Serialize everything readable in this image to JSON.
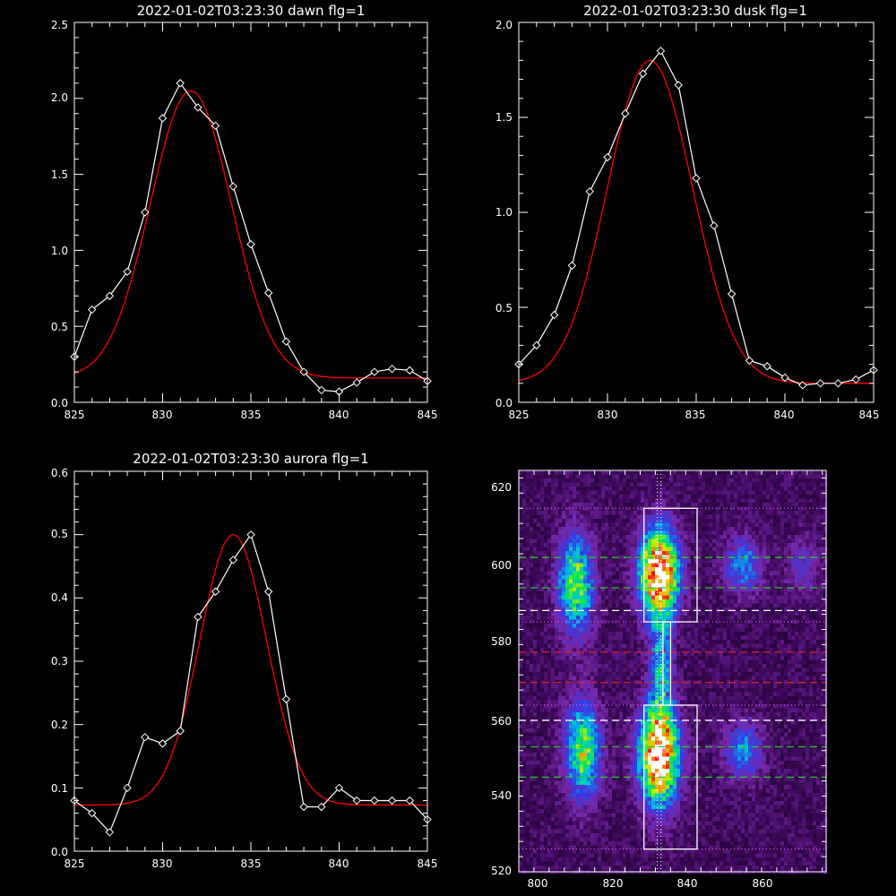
{
  "colors": {
    "background": "#000000",
    "axes": "#ffffff",
    "data_line": "#ffffff",
    "fit_line": "#ff0000",
    "green_dash": "#22cc22",
    "red_dash": "#dd2222",
    "white_dash": "#ffffff",
    "dotted": "#ff66ff"
  },
  "chart_data": [
    {
      "type": "line",
      "title": "2022-01-02T03:23:30 dawn flg=1",
      "xlim": [
        825,
        845
      ],
      "ylim": [
        0,
        2.5
      ],
      "xticks": [
        825,
        830,
        835,
        840,
        845
      ],
      "xtick_labels": [
        "825",
        "830",
        "835",
        "840",
        "845"
      ],
      "yticks": [
        0,
        0.5,
        1,
        1.5,
        2,
        2.5
      ],
      "ytick_labels": [
        "0.0",
        "0.5",
        "1.0",
        "1.5",
        "2.0",
        "2.5"
      ],
      "series": [
        {
          "role": "data",
          "marker": "diamond",
          "x": [
            825,
            826,
            827,
            828,
            829,
            830,
            831,
            832,
            833,
            834,
            835,
            836,
            837,
            838,
            839,
            840,
            841,
            842,
            843,
            844,
            845
          ],
          "y": [
            0.3,
            0.61,
            0.7,
            0.86,
            1.25,
            1.87,
            2.1,
            1.94,
            1.82,
            1.42,
            1.04,
            0.72,
            0.4,
            0.2,
            0.08,
            0.07,
            0.13,
            0.2,
            0.22,
            0.21,
            0.14
          ]
        },
        {
          "role": "fit",
          "gaussian": {
            "amp": 1.89,
            "center": 831.6,
            "sigma": 2.3,
            "offset": 0.16
          }
        }
      ]
    },
    {
      "type": "line",
      "title": "2022-01-02T03:23:30 dusk flg=1",
      "xlim": [
        825,
        845
      ],
      "ylim": [
        0,
        2.0
      ],
      "xticks": [
        825,
        830,
        835,
        840,
        845
      ],
      "xtick_labels": [
        "825",
        "830",
        "835",
        "840",
        "845"
      ],
      "yticks": [
        0,
        0.5,
        1,
        1.5,
        2
      ],
      "ytick_labels": [
        "0.0",
        "0.5",
        "1.0",
        "1.5",
        "2.0"
      ],
      "series": [
        {
          "role": "data",
          "marker": "diamond",
          "x": [
            825,
            826,
            827,
            828,
            829,
            830,
            831,
            832,
            833,
            834,
            835,
            836,
            837,
            838,
            839,
            840,
            841,
            842,
            843,
            844,
            845
          ],
          "y": [
            0.2,
            0.3,
            0.46,
            0.72,
            1.11,
            1.29,
            1.52,
            1.73,
            1.85,
            1.67,
            1.18,
            0.93,
            0.57,
            0.22,
            0.19,
            0.13,
            0.09,
            0.1,
            0.1,
            0.12,
            0.17
          ]
        },
        {
          "role": "fit",
          "gaussian": {
            "amp": 1.7,
            "center": 832.4,
            "sigma": 2.4,
            "offset": 0.1
          }
        }
      ]
    },
    {
      "type": "line",
      "title": "2022-01-02T03:23:30 aurora flg=1",
      "xlim": [
        825,
        845
      ],
      "ylim": [
        0,
        0.6
      ],
      "xticks": [
        825,
        830,
        835,
        840,
        845
      ],
      "xtick_labels": [
        "825",
        "830",
        "835",
        "840",
        "845"
      ],
      "yticks": [
        0,
        0.1,
        0.2,
        0.3,
        0.4,
        0.5,
        0.6
      ],
      "ytick_labels": [
        "0.0",
        "0.1",
        "0.2",
        "0.3",
        "0.4",
        "0.5",
        "0.6"
      ],
      "series": [
        {
          "role": "data",
          "marker": "diamond",
          "x": [
            825,
            826,
            827,
            828,
            829,
            830,
            831,
            832,
            833,
            834,
            835,
            836,
            837,
            838,
            839,
            840,
            841,
            842,
            843,
            844,
            845
          ],
          "y": [
            0.08,
            0.06,
            0.03,
            0.1,
            0.18,
            0.17,
            0.19,
            0.37,
            0.41,
            0.46,
            0.5,
            0.41,
            0.24,
            0.07,
            0.07,
            0.1,
            0.08,
            0.08,
            0.08,
            0.08,
            0.05
          ]
        },
        {
          "role": "fit",
          "gaussian": {
            "amp": 0.427,
            "center": 834.0,
            "sigma": 1.9,
            "offset": 0.073
          }
        }
      ]
    },
    {
      "type": "heatmap",
      "title": "",
      "xlim": [
        795,
        876
      ],
      "ylim": [
        519,
        625
      ],
      "xticks": [
        800,
        820,
        840,
        860
      ],
      "xtick_labels": [
        "800",
        "820",
        "840",
        "860"
      ],
      "yticks": [
        520,
        540,
        560,
        580,
        600,
        620
      ],
      "ytick_labels": [
        "520",
        "540",
        "560",
        "580",
        "600",
        "620"
      ],
      "blobs": [
        {
          "x": 810,
          "y": 595,
          "sx": 3.2,
          "sy": 9,
          "amp": 0.55
        },
        {
          "x": 812,
          "y": 551,
          "sx": 3.2,
          "sy": 9,
          "amp": 0.55
        },
        {
          "x": 832,
          "y": 598,
          "sx": 3.5,
          "sy": 8,
          "amp": 1.0
        },
        {
          "x": 832,
          "y": 550,
          "sx": 3.5,
          "sy": 9,
          "amp": 1.0
        },
        {
          "x": 832.5,
          "y": 574,
          "sx": 2.0,
          "sy": 9,
          "amp": 0.35
        },
        {
          "x": 854,
          "y": 600,
          "sx": 3.5,
          "sy": 5,
          "amp": 0.33
        },
        {
          "x": 854,
          "y": 551,
          "sx": 3.5,
          "sy": 5,
          "amp": 0.33
        },
        {
          "x": 870,
          "y": 600,
          "sx": 3.0,
          "sy": 5,
          "amp": 0.18
        }
      ],
      "boxes": [
        {
          "x1": 828,
          "x2": 842,
          "y1": 585,
          "y2": 615
        },
        {
          "x1": 833,
          "x2": 835,
          "y1": 563,
          "y2": 585
        },
        {
          "x1": 828,
          "x2": 842,
          "y1": 525,
          "y2": 563
        }
      ],
      "hlines_dotted": [
        615,
        585,
        563,
        525
      ],
      "vline_dotted": [
        831.5,
        832.5
      ],
      "hlines_green": [
        602,
        594,
        552,
        544
      ],
      "hlines_white_dash": [
        588,
        559
      ],
      "hlines_red_dash": [
        577,
        569
      ]
    }
  ]
}
